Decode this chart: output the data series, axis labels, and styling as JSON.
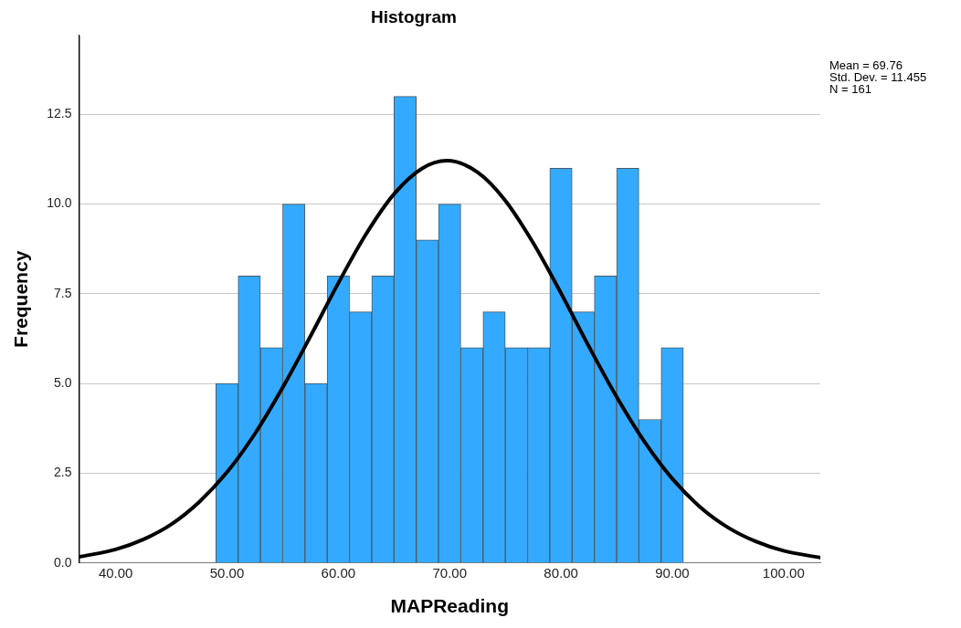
{
  "chart_data": {
    "type": "histogram",
    "title": "Histogram",
    "xlabel": "MAPReading",
    "ylabel": "Frequency",
    "bins": [
      49,
      51,
      53,
      55,
      57,
      59,
      61,
      63,
      65,
      67,
      69,
      71,
      73,
      75,
      77,
      79,
      81,
      83,
      85,
      87,
      89,
      91
    ],
    "values": [
      5,
      8,
      6,
      10,
      5,
      8,
      7,
      8,
      13,
      9,
      10,
      6,
      7,
      6,
      6,
      11,
      7,
      8,
      11,
      4,
      6
    ],
    "color": "#33aaff",
    "series": [
      {
        "type": "line",
        "color": "#000000",
        "x": [
          36.7,
          40,
          42.5,
          45,
          47.5,
          50,
          52.5,
          55,
          57.5,
          60,
          62.5,
          65,
          67.5,
          69.76,
          72.5,
          75,
          77.5,
          80,
          82.5,
          85,
          87.5,
          90,
          92.5,
          95,
          97.5,
          100,
          103.3
        ],
        "values": [
          0.17,
          0.38,
          0.66,
          1.08,
          1.7,
          2.53,
          3.6,
          4.89,
          6.32,
          7.8,
          9.17,
          10.28,
          10.99,
          11.21,
          10.89,
          10.1,
          8.92,
          7.52,
          6.04,
          4.63,
          3.38,
          2.35,
          1.56,
          0.99,
          0.6,
          0.34,
          0.15
        ]
      }
    ],
    "xlim": [
      36.7,
      103.3
    ],
    "xticks": [
      {
        "value": 40,
        "label": "40.00"
      },
      {
        "value": 50,
        "label": "50.00"
      },
      {
        "value": 60,
        "label": "60.00"
      },
      {
        "value": 70,
        "label": "70.00"
      },
      {
        "value": 80,
        "label": "80.00"
      },
      {
        "value": 90,
        "label": "90.00"
      },
      {
        "value": 100,
        "label": "100.00"
      }
    ],
    "ylim": [
      0,
      14.7
    ],
    "yticks": [
      {
        "value": 0,
        "label": "0.0"
      },
      {
        "value": 2.5,
        "label": "2.5"
      },
      {
        "value": 5,
        "label": "5.0"
      },
      {
        "value": 7.5,
        "label": "7.5"
      },
      {
        "value": 10,
        "label": "10.0"
      },
      {
        "value": 12.5,
        "label": "12.5"
      }
    ],
    "grid": "y",
    "legend": false,
    "marker": "none",
    "line_style": "solid",
    "annotations": [
      "Mean = 69.76",
      "Std. Dev. = 11.455",
      "N = 161"
    ]
  }
}
